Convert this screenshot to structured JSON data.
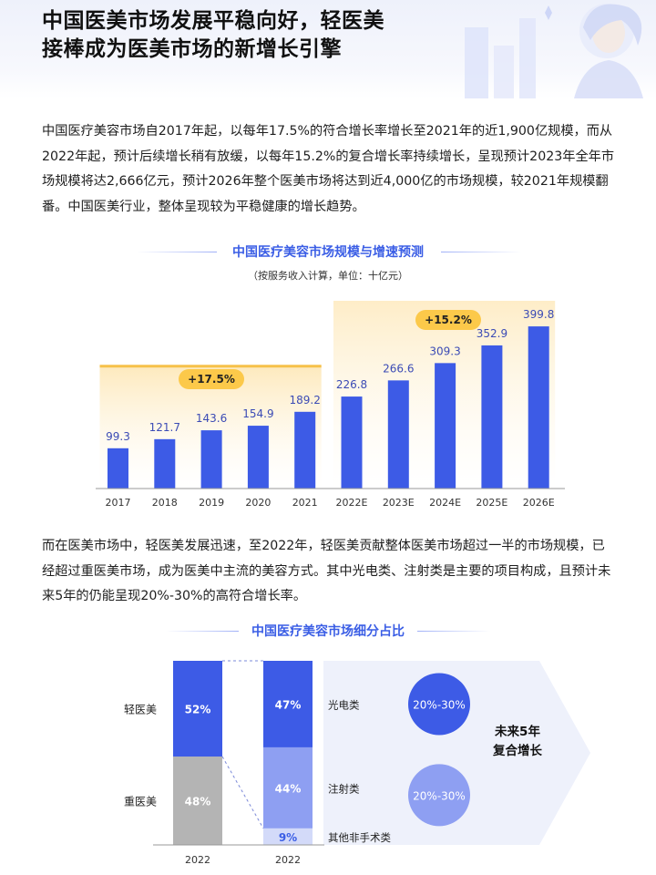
{
  "header": {
    "title_line1": "中国医美市场发展平稳向好，轻医美",
    "title_line2": "接棒成为医美市场的新增长引擎"
  },
  "paragraph1": "中国医疗美容市场自2017年起，以每年17.5%的符合增长率增长至2021年的近1,900亿规模，而从2022年起，预计后续增长稍有放缓，以每年15.2%的复合增长率持续增长，呈现预计2023年全年市场规模将达2,666亿元，预计2026年整个医美市场将达到近4,000亿的市场规模，较2021年规模翻番。中国医美行业，整体呈现较为平稳健康的增长趋势。",
  "paragraph2": "而在医美市场中，轻医美发展迅速，至2022年，轻医美贡献整体医美市场超过一半的市场规模，已经超过重医美市场，成为医美中主流的美容方式。其中光电类、注射类是主要的项目构成，且预计未来5年的仍能呈现20%-30%的高符合增长率。",
  "colors": {
    "bar": "#3d5be6",
    "accent": "#3b5ee5",
    "growth_pill": "#fcc94a",
    "gray": "#b4b4b4",
    "light_blue": "#8e9ff2",
    "pale_blue": "#d3daf9"
  },
  "chart_data": [
    {
      "type": "bar",
      "title": "中国医疗美容市场规模与增速预测",
      "subtitle": "（按服务收入计算，单位：十亿元）",
      "categories": [
        "2017",
        "2018",
        "2019",
        "2020",
        "2021",
        "2022E",
        "2023E",
        "2024E",
        "2025E",
        "2026E"
      ],
      "values": [
        99.3,
        121.7,
        143.6,
        154.9,
        189.2,
        226.8,
        266.6,
        309.3,
        352.9,
        399.8
      ],
      "value_labels": [
        "99.3",
        "121.7",
        "143.6",
        "154.9",
        "189.2",
        "226.8",
        "266.6",
        "309.3",
        "352.9",
        "399.8"
      ],
      "ylim": [
        0,
        400
      ],
      "grid": false,
      "annotations": [
        {
          "label": "+17.5%",
          "from": "2017",
          "to": "2021"
        },
        {
          "label": "+15.2%",
          "from": "2022E",
          "to": "2026E"
        }
      ]
    },
    {
      "type": "bar",
      "stacked": true,
      "title": "中国医疗美容市场细分占比",
      "categories": [
        "2022",
        "2022"
      ],
      "bars": [
        {
          "category": "2022",
          "segments": [
            {
              "name": "重医美",
              "value": 48,
              "label": "48%"
            },
            {
              "name": "轻医美",
              "value": 52,
              "label": "52%"
            }
          ]
        },
        {
          "category": "2022",
          "segments": [
            {
              "name": "其他非手术类",
              "value": 9,
              "label": "9%"
            },
            {
              "name": "注射类",
              "value": 44,
              "label": "44%"
            },
            {
              "name": "光电类",
              "value": 47,
              "label": "47%"
            }
          ]
        }
      ],
      "ylim": [
        0,
        100
      ],
      "side_note": {
        "circles": [
          {
            "label": "20%-30%",
            "for": "光电类"
          },
          {
            "label": "20%-30%",
            "for": "注射类"
          }
        ],
        "text_line1": "未来5年",
        "text_line2": "复合增长"
      }
    }
  ]
}
